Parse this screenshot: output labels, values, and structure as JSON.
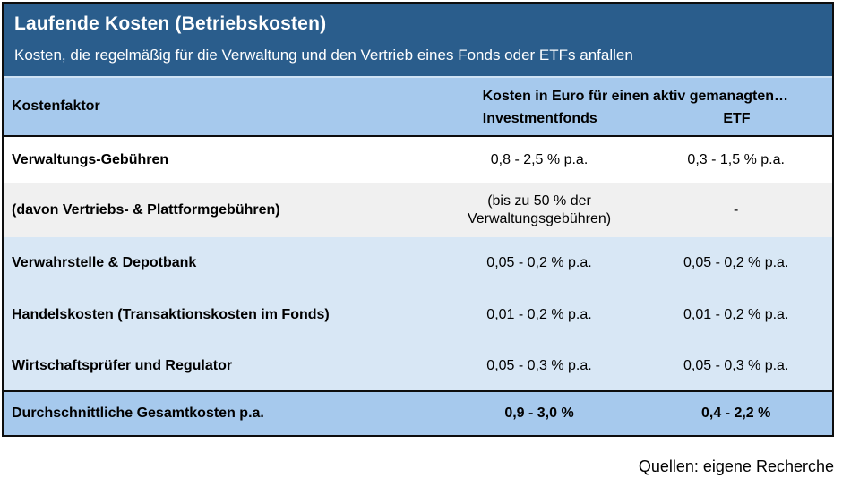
{
  "colors": {
    "dark_blue": "#2A5D8C",
    "header_blue": "#A6C9ED",
    "row_blue": "#D8E7F5",
    "row_gray": "#F0F0F0"
  },
  "chart_data": {
    "type": "table",
    "title": "Laufende Kosten (Betriebskosten)",
    "subtitle": "Kosten, die regelmäßig für die Verwaltung und den Vertrieb eines Fonds oder ETFs anfallen",
    "col1_header": "Kostenfaktor",
    "column_group_header": "Kosten in Euro für einen aktiv gemanagten…",
    "col2_header": "Investmentfonds",
    "col3_header": "ETF",
    "rows": [
      {
        "label": "Verwaltungs-Gebühren",
        "investmentfonds": "0,8 - 2,5 % p.a.",
        "etf": "0,3 - 1,5 % p.a."
      },
      {
        "label": "(davon Vertriebs- & Plattformgebühren)",
        "investmentfonds": "(bis zu 50 % der Verwaltungsgebühren)",
        "etf": "-"
      },
      {
        "label": "Verwahrstelle & Depotbank",
        "investmentfonds": "0,05 - 0,2 % p.a.",
        "etf": "0,05 - 0,2 % p.a."
      },
      {
        "label": "Handelskosten (Transaktionskosten im Fonds)",
        "investmentfonds": "0,01 - 0,2 % p.a.",
        "etf": "0,01 - 0,2 % p.a."
      },
      {
        "label": "Wirtschaftsprüfer und Regulator",
        "investmentfonds": "0,05 - 0,3 % p.a.",
        "etf": "0,05 - 0,3 % p.a."
      }
    ],
    "footer_row": {
      "label": "Durchschnittliche Gesamtkosten p.a.",
      "investmentfonds": "0,9 - 3,0 %",
      "etf": "0,4 - 2,2 %"
    },
    "source": "Quellen: eigene Recherche"
  }
}
